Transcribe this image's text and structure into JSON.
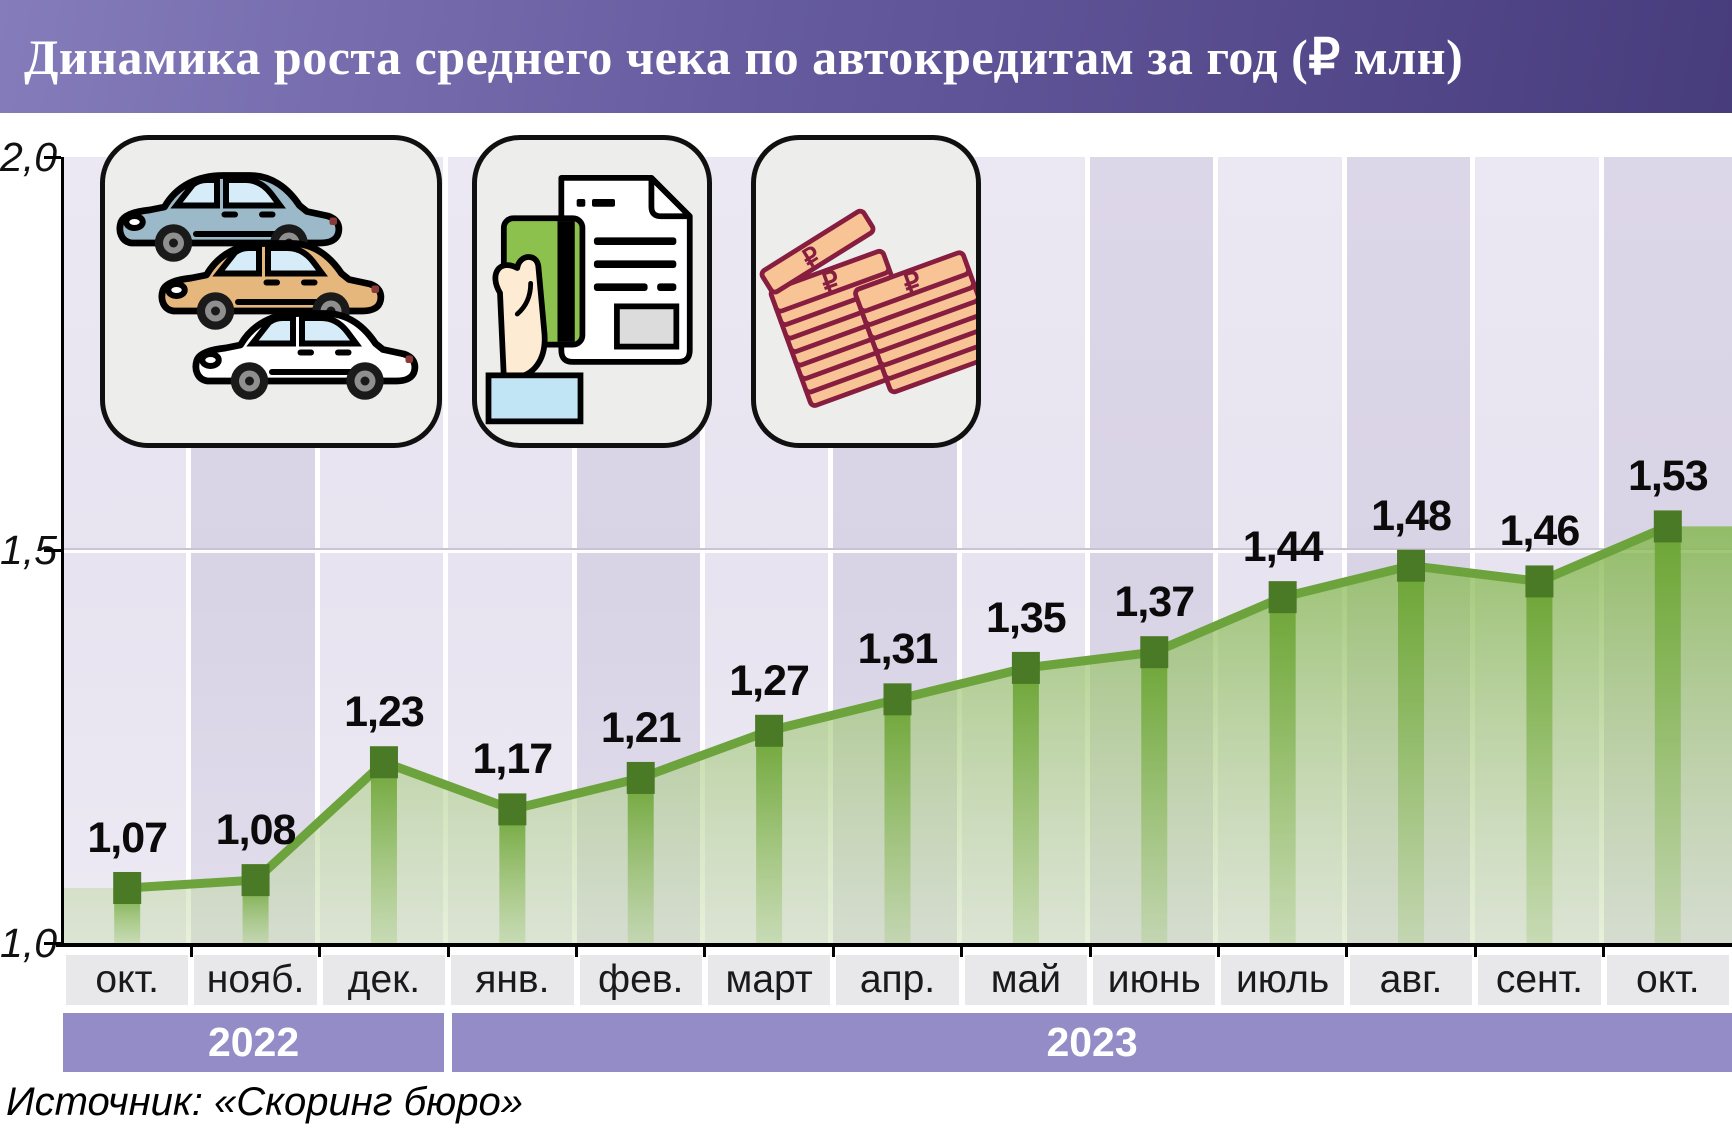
{
  "header": {
    "title": "Динамика роста среднего чека по автокредитам за год (₽ млн)"
  },
  "source": {
    "text": "Источник: «Скоринг бюро»"
  },
  "icons": {
    "ruble_glyph": "₽",
    "names": [
      "cars-icon",
      "credit-card-document-icon",
      "ruble-banknotes-icon"
    ]
  },
  "chart_data": {
    "type": "area",
    "title": "Динамика роста среднего чека по автокредитам за год (₽ млн)",
    "xlabel": "",
    "ylabel": "",
    "categories": [
      "окт.",
      "нояб.",
      "дек.",
      "янв.",
      "фев.",
      "март",
      "апр.",
      "май",
      "июнь",
      "июль",
      "авг.",
      "сент.",
      "окт."
    ],
    "values": [
      1.07,
      1.08,
      1.23,
      1.17,
      1.21,
      1.27,
      1.31,
      1.35,
      1.37,
      1.44,
      1.48,
      1.46,
      1.53
    ],
    "point_labels": [
      "1,07",
      "1,08",
      "1,23",
      "1,17",
      "1,21",
      "1,27",
      "1,31",
      "1,35",
      "1,37",
      "1,44",
      "1,48",
      "1,46",
      "1,53"
    ],
    "ylim": [
      1.0,
      2.0
    ],
    "yticks": [
      {
        "value": 1.0,
        "label": "1,0"
      },
      {
        "value": 1.5,
        "label": "1,5"
      },
      {
        "value": 2.0,
        "label": "2,0"
      }
    ],
    "grid": "horizontal line at 1.5 only",
    "legend_position": "none",
    "year_bands": [
      {
        "label": "2022",
        "from_index": 0,
        "to_index": 3
      },
      {
        "label": "2023",
        "from_index": 3,
        "to_index": 13
      }
    ],
    "stripe_pattern": [
      "light",
      "dark",
      "light",
      "light",
      "dark",
      "light",
      "dark",
      "light",
      "dark",
      "light",
      "dark",
      "light",
      "dark"
    ],
    "colors": {
      "line": "#6da33d",
      "marker": "#4b7a27",
      "area_top": "rgba(131,183,76,0.82)",
      "area_bottom": "rgba(196,219,167,0.42)",
      "bar_top": "rgba(106,163,50,0.95)",
      "bar_bottom": "rgba(152,196,108,0.30)",
      "stripe_light": "#e7e3f0",
      "stripe_dark": "#d8d3e5",
      "year_band": "#938cc7",
      "month_box": "#e8e7ea",
      "header_accent": "#473c7c"
    }
  }
}
